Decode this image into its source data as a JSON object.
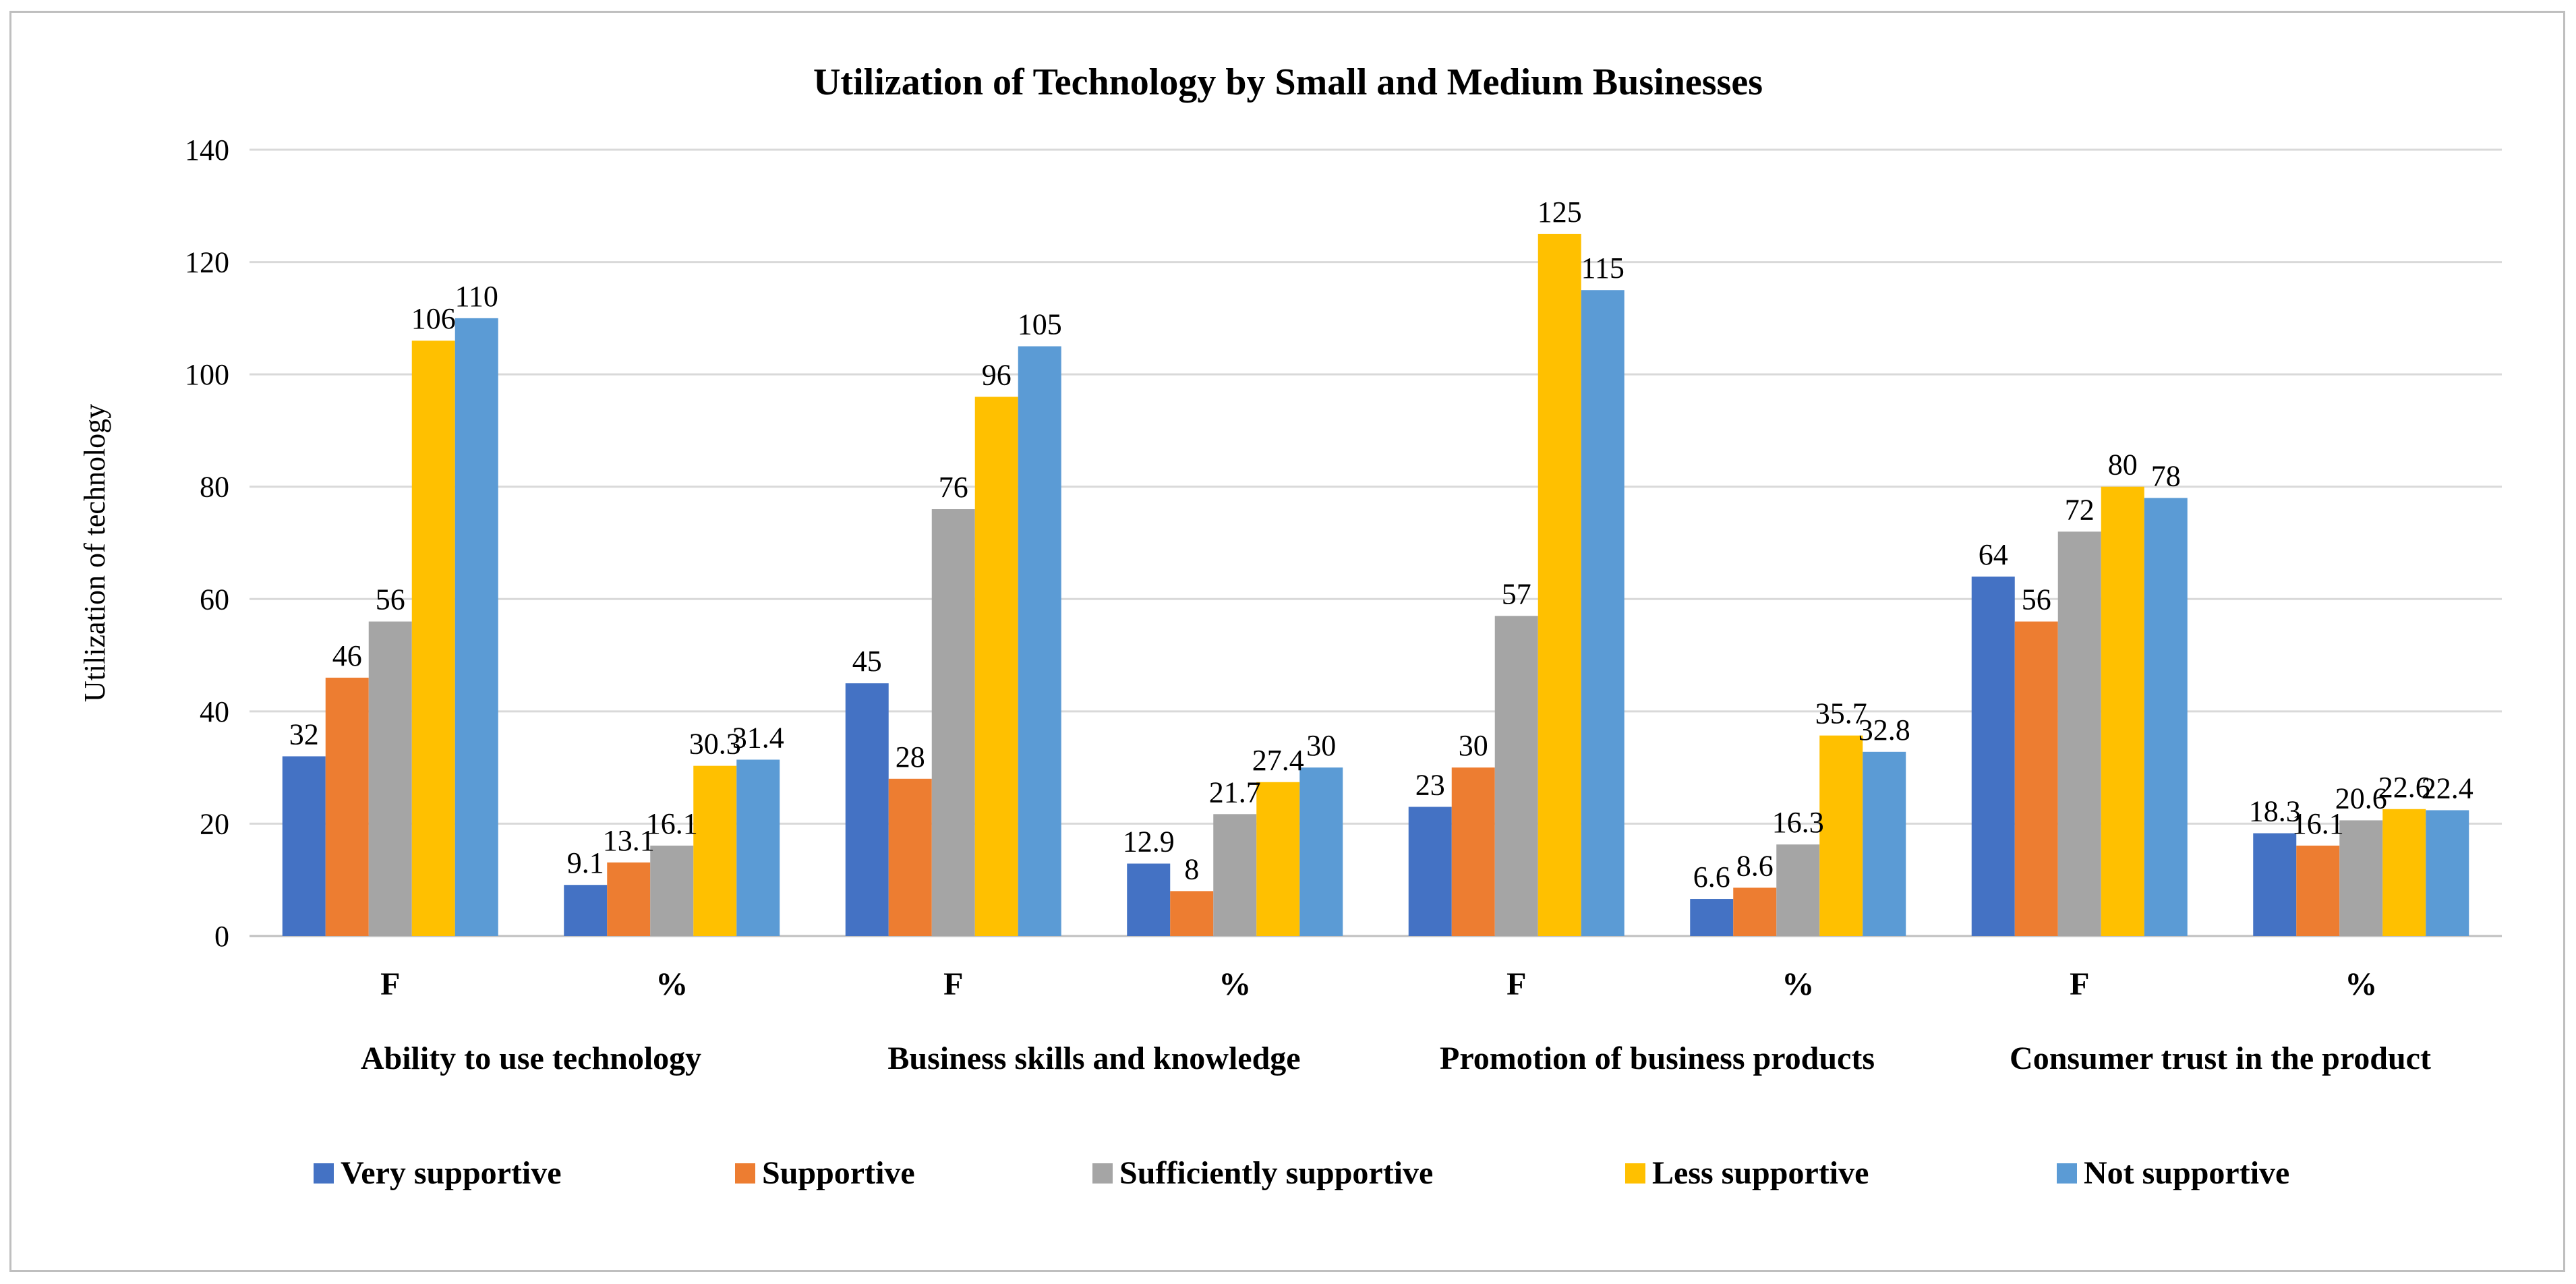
{
  "chart_data": {
    "type": "bar",
    "title": "Utilization of Technology by Small and Medium Businesses",
    "ylabel": "Utilization  of technology",
    "xlabel": "",
    "ylim": [
      0,
      140
    ],
    "yticks": [
      "0",
      "20",
      "40",
      "60",
      "80",
      "100",
      "120",
      "140"
    ],
    "grid": true,
    "legend_position": "bottom",
    "categories": [
      "F",
      "%",
      "F",
      "%",
      "F",
      "%",
      "F",
      "%"
    ],
    "groups": [
      "Ability to use technology",
      "Business skills and knowledge",
      "Promotion of business products",
      "Consumer trust in the product"
    ],
    "series": [
      {
        "name": "Very supportive",
        "color": "#4472C4",
        "values": [
          32,
          9.1,
          45,
          12.9,
          23,
          6.6,
          64,
          18.3
        ]
      },
      {
        "name": "Supportive",
        "color": "#ED7D31",
        "values": [
          46,
          13.1,
          28,
          8,
          30,
          8.6,
          56,
          16.1
        ]
      },
      {
        "name": "Sufficiently supportive",
        "color": "#A5A5A5",
        "values": [
          56,
          16.1,
          76,
          21.7,
          57,
          16.3,
          72,
          20.6
        ]
      },
      {
        "name": "Less supportive",
        "color": "#FFC000",
        "values": [
          106,
          30.3,
          96,
          27.4,
          125,
          35.7,
          80,
          22.6
        ]
      },
      {
        "name": "Not supportive",
        "color": "#5B9BD5",
        "values": [
          110,
          31.4,
          105,
          30,
          115,
          32.8,
          78,
          22.4
        ]
      }
    ]
  }
}
